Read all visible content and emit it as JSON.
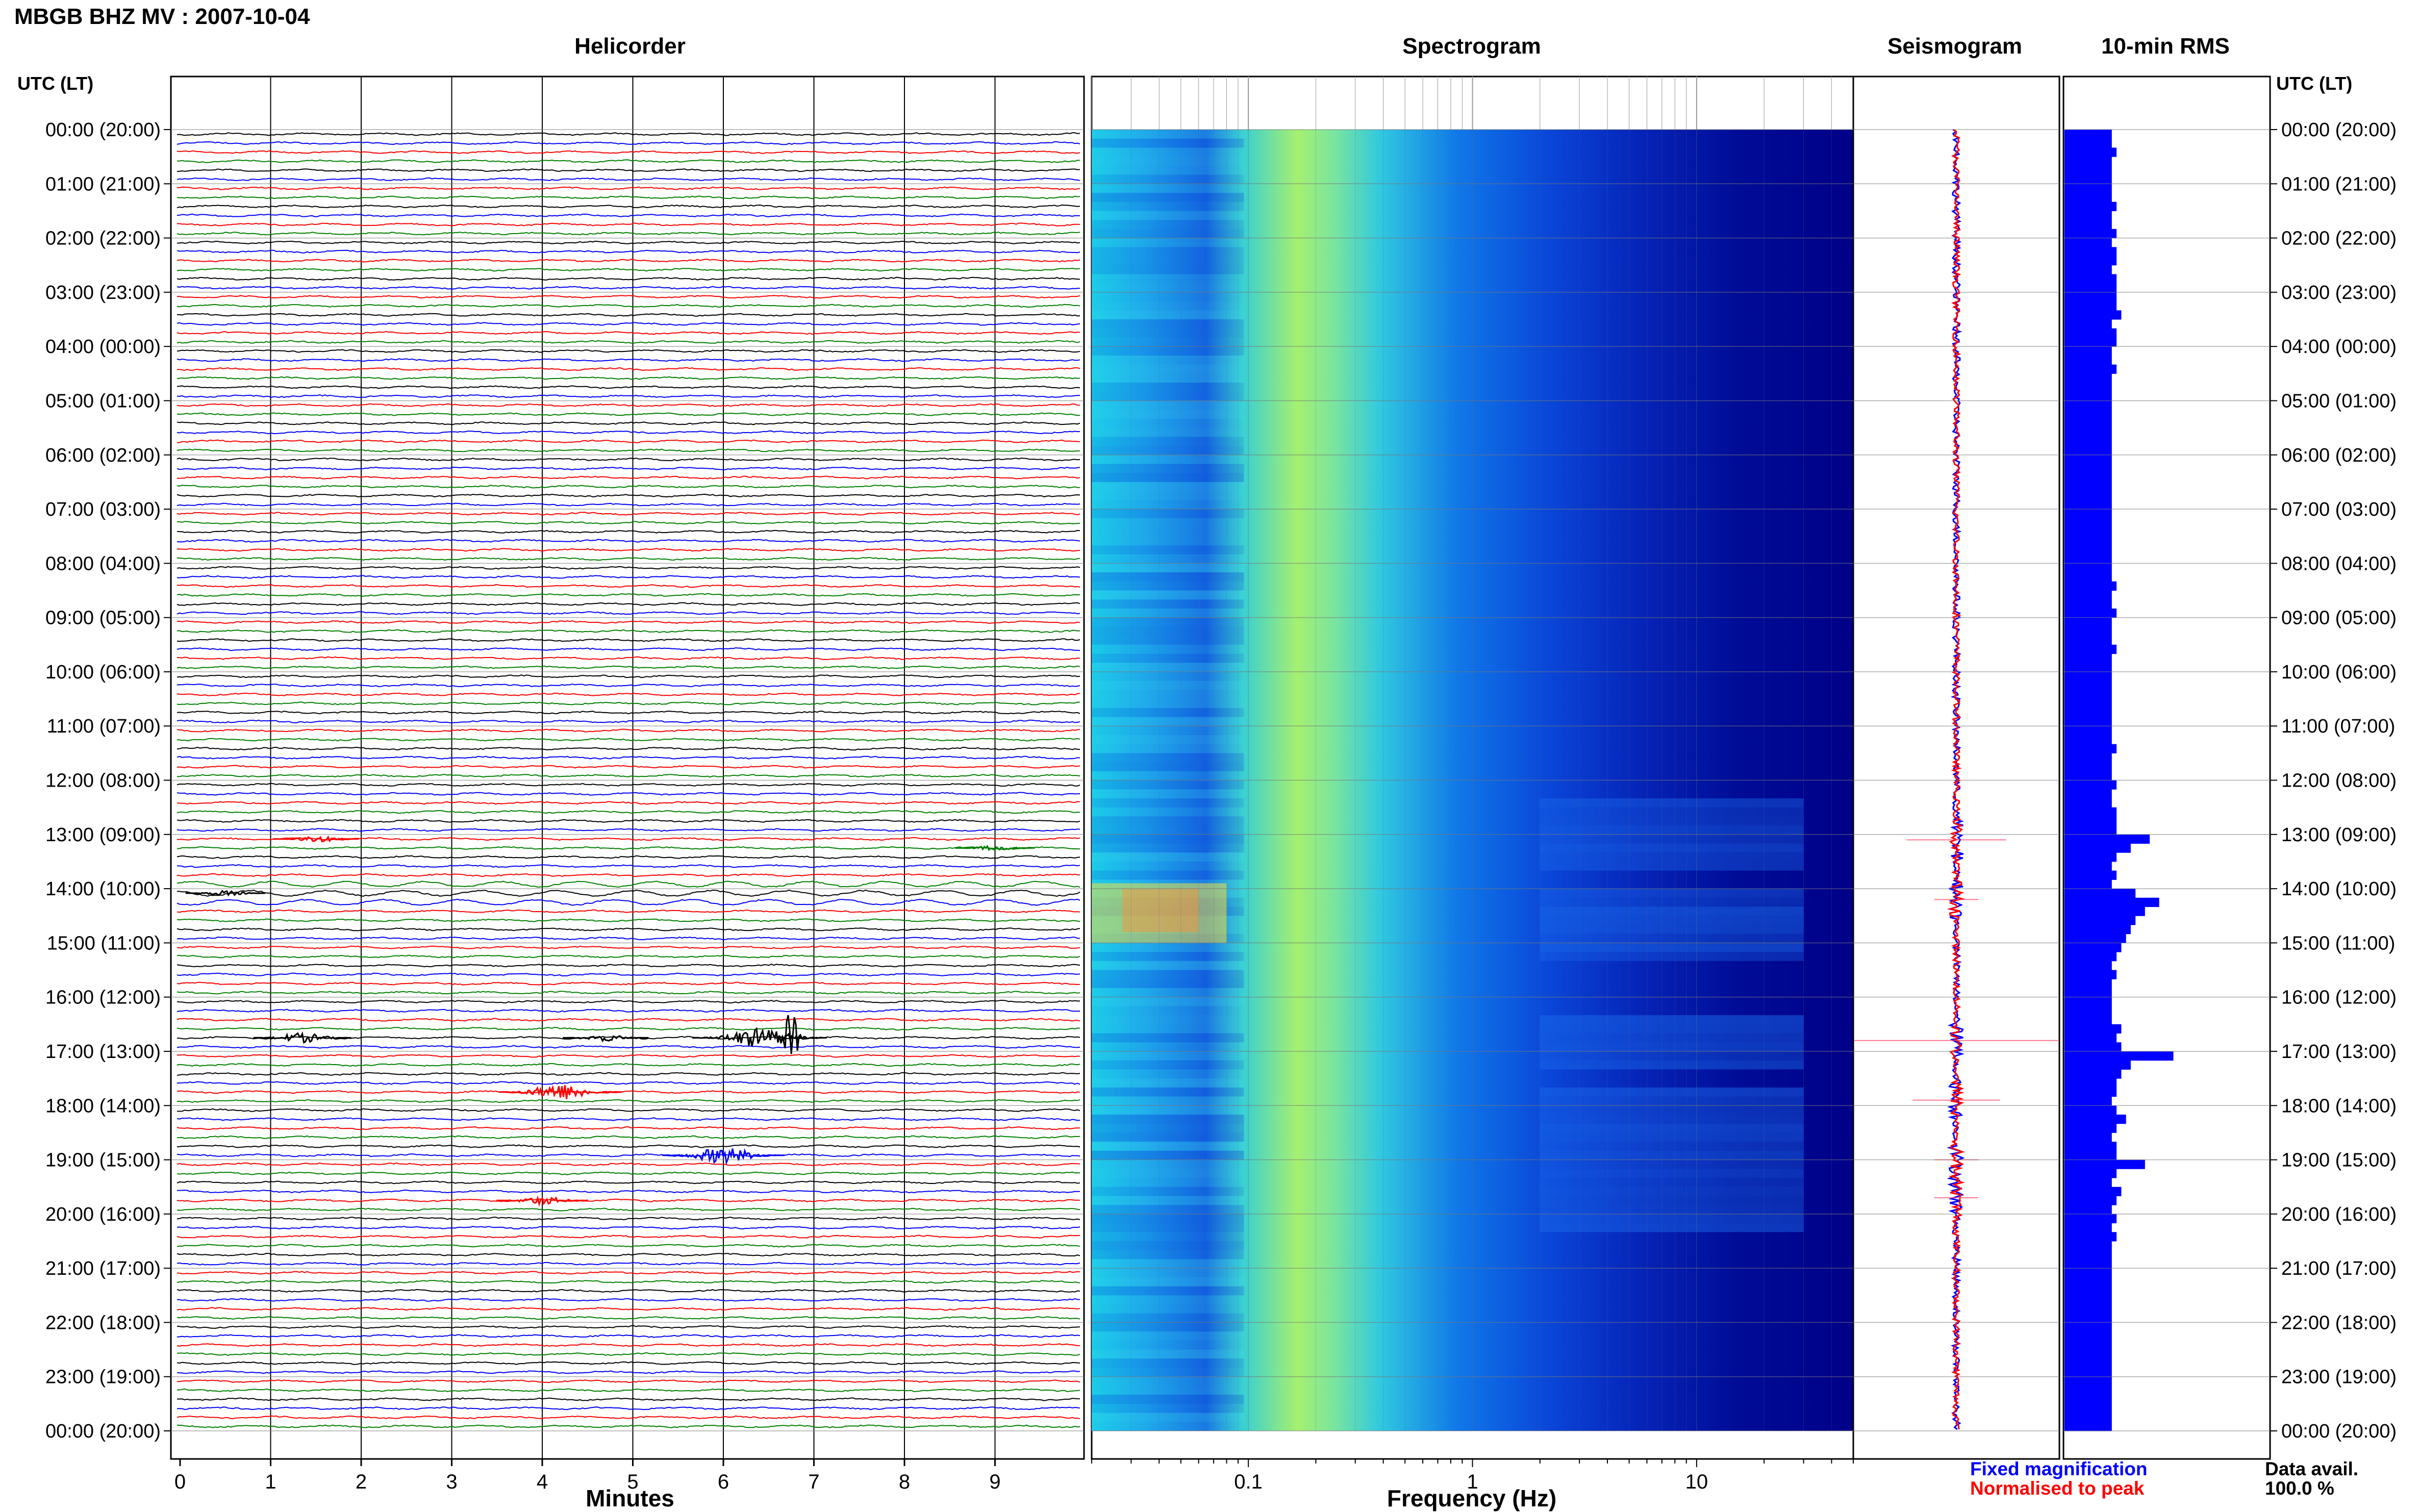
{
  "header": {
    "title": "MBGB BHZ MV : 2007-10-04"
  },
  "panels": {
    "helicorder_title": "Helicorder",
    "spectrogram_title": "Spectrogram",
    "seismogram_title": "Seismogram",
    "rms_title": "10-min RMS"
  },
  "axes": {
    "left_time_header": "UTC (LT)",
    "right_time_header": "UTC (LT)",
    "minutes_label": "Minutes",
    "frequency_label": "Frequency (Hz)"
  },
  "legend": {
    "fixed_label": "Fixed magnification",
    "fixed_color": "#0000ff",
    "normalised_label": "Normalised to peak",
    "normalised_color": "#ff0000"
  },
  "availability": {
    "label": "Data avail.",
    "value": "100.0 %"
  },
  "colors": {
    "trace_cycle": [
      "#000000",
      "#0000ff",
      "#ff0000",
      "#008000"
    ],
    "spectrogram_low": "#000080",
    "spectrogram_high": "#ffff66",
    "rms_bar": "#0000ff"
  },
  "chart_data": [
    {
      "type": "line",
      "title": "Helicorder",
      "xlabel": "Minutes",
      "x_ticks": [
        "0",
        "1",
        "2",
        "3",
        "4",
        "5",
        "6",
        "7",
        "8",
        "9"
      ],
      "xlim": [
        0,
        10
      ],
      "y_ticks": [
        "00:00 (20:00)",
        "01:00 (21:00)",
        "02:00 (22:00)",
        "03:00 (23:00)",
        "04:00 (00:00)",
        "05:00 (01:00)",
        "06:00 (02:00)",
        "07:00 (03:00)",
        "08:00 (04:00)",
        "09:00 (05:00)",
        "10:00 (06:00)",
        "11:00 (07:00)",
        "12:00 (08:00)",
        "13:00 (09:00)",
        "14:00 (10:00)",
        "15:00 (11:00)",
        "16:00 (12:00)",
        "17:00 (13:00)",
        "18:00 (14:00)",
        "19:00 (15:00)",
        "20:00 (16:00)",
        "21:00 (17:00)",
        "22:00 (18:00)",
        "23:00 (19:00)",
        "00:00 (20:00)"
      ],
      "rows": 144,
      "events": [
        {
          "hour": 13.0,
          "minute": 1.5,
          "amplitude": 0.4
        },
        {
          "hour": 13.1,
          "minute": 9.0,
          "amplitude": 0.3
        },
        {
          "hour": 14.0,
          "minute": 0.5,
          "amplitude": 0.3
        },
        {
          "hour": 16.6,
          "minute": 1.35,
          "amplitude": 0.6
        },
        {
          "hour": 16.6,
          "minute": 4.7,
          "amplitude": 0.4
        },
        {
          "hour": 16.6,
          "minute": 6.4,
          "amplitude": 1.2
        },
        {
          "hour": 16.6,
          "minute": 6.75,
          "amplitude": 4.0
        },
        {
          "hour": 17.7,
          "minute": 4.2,
          "amplitude": 1.0
        },
        {
          "hour": 18.9,
          "minute": 6.0,
          "amplitude": 1.0
        },
        {
          "hour": 19.6,
          "minute": 4.0,
          "amplitude": 0.5
        }
      ]
    },
    {
      "type": "heatmap",
      "title": "Spectrogram",
      "xlabel": "Frequency (Hz)",
      "x_scale": "log",
      "xlim": [
        0.02,
        50
      ],
      "x_ticks": [
        "0.1",
        "1",
        "10"
      ],
      "rows": 144,
      "peak_band_hz": [
        0.15,
        0.5
      ],
      "activity_periods_hour": [
        [
          12.2,
          13.6
        ],
        [
          13.9,
          15.2
        ],
        [
          16.2,
          17.3
        ],
        [
          17.6,
          20.3
        ]
      ],
      "strong_low_freq_hour": [
        13.9,
        15.0
      ]
    },
    {
      "type": "line",
      "title": "Seismogram",
      "series": [
        {
          "name": "Fixed magnification",
          "color": "#0000ff"
        },
        {
          "name": "Normalised to peak",
          "color": "#ff0000"
        }
      ],
      "spikes_hour": [
        13.1,
        14.2,
        16.8,
        17.9,
        19.0,
        19.7
      ]
    },
    {
      "type": "bar",
      "title": "10-min RMS",
      "orientation": "horizontal",
      "ylim": [
        0,
        24
      ],
      "values": [
        1.0,
        1.0,
        1.1,
        1.0,
        1.0,
        1.0,
        1.0,
        1.0,
        1.1,
        1.0,
        1.0,
        1.1,
        1.0,
        1.1,
        1.1,
        1.0,
        1.1,
        1.1,
        1.1,
        1.1,
        1.2,
        1.0,
        1.1,
        1.1,
        1.0,
        1.0,
        1.1,
        1.0,
        1.0,
        1.0,
        1.0,
        1.0,
        1.0,
        1.0,
        1.0,
        1.0,
        1.0,
        1.0,
        1.0,
        1.0,
        1.0,
        1.0,
        1.0,
        1.0,
        1.0,
        1.0,
        1.0,
        1.0,
        1.0,
        1.0,
        1.1,
        1.0,
        1.0,
        1.1,
        1.0,
        1.0,
        1.0,
        1.1,
        1.0,
        1.0,
        1.0,
        1.0,
        1.0,
        1.0,
        1.0,
        1.0,
        1.0,
        1.0,
        1.1,
        1.0,
        1.0,
        1.0,
        1.1,
        1.0,
        1.0,
        1.1,
        1.1,
        1.1,
        1.8,
        1.4,
        1.1,
        1.0,
        1.1,
        1.0,
        1.5,
        2.0,
        1.7,
        1.5,
        1.4,
        1.3,
        1.2,
        1.1,
        1.0,
        1.1,
        1.0,
        1.0,
        1.0,
        1.0,
        1.0,
        1.2,
        1.1,
        1.2,
        2.3,
        1.4,
        1.2,
        1.1,
        1.1,
        1.0,
        1.1,
        1.3,
        1.1,
        1.0,
        1.1,
        1.1,
        1.7,
        1.1,
        1.0,
        1.2,
        1.1,
        1.0,
        1.1,
        1.0,
        1.1,
        1.0,
        1.0,
        1.0,
        1.0,
        1.0,
        1.0,
        1.0,
        1.0,
        1.0,
        1.0,
        1.0,
        1.0,
        1.0,
        1.0,
        1.0,
        1.0,
        1.0,
        1.0,
        1.0,
        1.0,
        1.0
      ]
    }
  ]
}
